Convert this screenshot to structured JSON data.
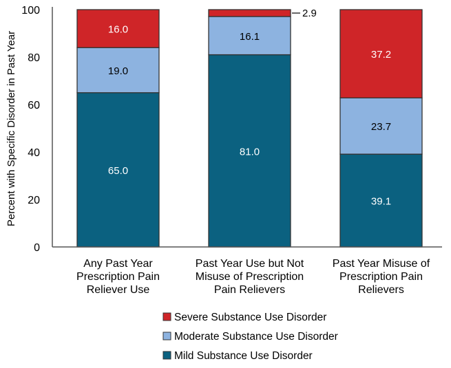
{
  "chart_data": {
    "type": "bar",
    "stacked": true,
    "title": "",
    "xlabel": "",
    "ylabel": "Percent with Specific Disorder in Past Year",
    "ylim": [
      0,
      100
    ],
    "yticks": [
      0,
      20,
      40,
      60,
      80,
      100
    ],
    "grid": false,
    "legend_placement": "bottom",
    "categories": [
      "Any Past Year Prescription Pain Reliever Use",
      "Past Year Use but Not Misuse of Prescription Pain Relievers",
      "Past Year Misuse of Prescription Pain Relievers"
    ],
    "category_lines": [
      [
        "Any Past Year",
        "Prescription Pain",
        "Reliever Use"
      ],
      [
        "Past Year Use but Not",
        "Misuse of Prescription",
        "Pain Relievers"
      ],
      [
        "Past Year Misuse of",
        "Prescription Pain",
        "Relievers"
      ]
    ],
    "series": [
      {
        "name": "Mild Substance Use Disorder",
        "color": "#0b6180",
        "label_color": "#ffffff",
        "values": [
          65.0,
          81.0,
          39.1
        ],
        "labels": [
          "65.0",
          "81.0",
          "39.1"
        ]
      },
      {
        "name": "Moderate Substance Use Disorder",
        "color": "#8db3e0",
        "label_color": "#000000",
        "values": [
          19.0,
          16.1,
          23.7
        ],
        "labels": [
          "19.0",
          "16.1",
          "23.7"
        ]
      },
      {
        "name": "Severe Substance Use Disorder",
        "color": "#cf2528",
        "label_color": "#ffffff",
        "values": [
          16.0,
          2.9,
          37.2
        ],
        "labels": [
          "16.0",
          "2.9",
          "37.2"
        ]
      }
    ],
    "legend_order": [
      2,
      1,
      0
    ]
  }
}
